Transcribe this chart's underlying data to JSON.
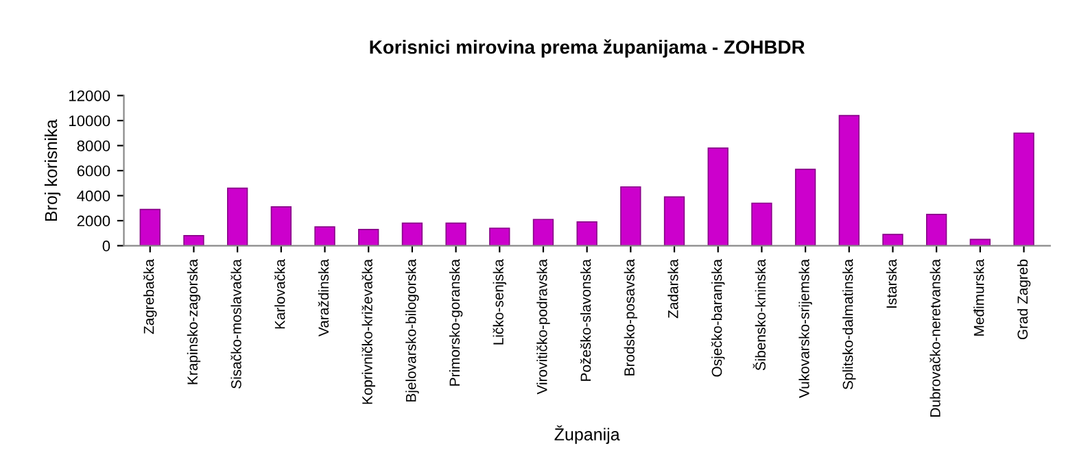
{
  "chart_data": {
    "type": "bar",
    "title": "Korisnici mirovina prema županijama - ZOHBDR",
    "xlabel": "Županija",
    "ylabel": "Broj korisnika",
    "categories": [
      "Zagrebačka",
      "Krapinsko-zagorska",
      "Sisačko-moslavačka",
      "Karlovačka",
      "Varaždinska",
      "Koprivničko-križevačka",
      "Bjelovarsko-bilogorska",
      "Primorsko-goranska",
      "Ličko-senjska",
      "Virovitičko-podravska",
      "Požeško-slavonska",
      "Brodsko-posavska",
      "Zadarska",
      "Osječko-baranjska",
      "Šibensko-kninska",
      "Vukovarsko-srijemska",
      "Splitsko-dalmatinska",
      "Istarska",
      "Dubrovačko-neretvanska",
      "Međimurska",
      "Grad Zagreb"
    ],
    "values": [
      2900,
      800,
      4600,
      3100,
      1500,
      1300,
      1800,
      1800,
      1400,
      2100,
      1900,
      4700,
      3900,
      7800,
      3400,
      6100,
      10400,
      900,
      2500,
      500,
      9000
    ],
    "color": "#cc00cc",
    "ylim": [
      0,
      12000
    ],
    "yticks": [
      0,
      2000,
      4000,
      6000,
      8000,
      10000,
      12000
    ],
    "grid": false,
    "legend": false
  }
}
